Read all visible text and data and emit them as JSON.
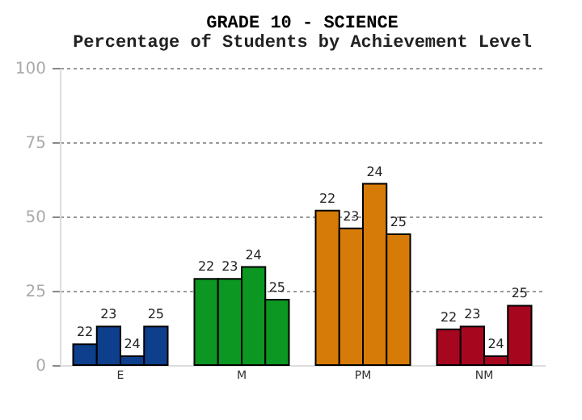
{
  "chart_data": {
    "type": "bar",
    "title": "GRADE 10 - SCIENCE",
    "subtitle": "Percentage of Students by Achievement Level",
    "categories": [
      "E",
      "M",
      "PM",
      "NM"
    ],
    "series": [
      {
        "name": "22",
        "colors": [
          "#0d3f8c",
          "#0c9622",
          "#d67b07",
          "#a6071f"
        ],
        "values": [
          7,
          29,
          52,
          12
        ]
      },
      {
        "name": "23",
        "colors": [
          "#0d3f8c",
          "#0c9622",
          "#d67b07",
          "#a6071f"
        ],
        "values": [
          13,
          29,
          46,
          13
        ]
      },
      {
        "name": "24",
        "colors": [
          "#0d3f8c",
          "#0c9622",
          "#d67b07",
          "#a6071f"
        ],
        "values": [
          3,
          33,
          61,
          3
        ]
      },
      {
        "name": "25",
        "colors": [
          "#0d3f8c",
          "#0c9622",
          "#d67b07",
          "#a6071f"
        ],
        "values": [
          13,
          22,
          44,
          20
        ]
      }
    ],
    "ylim": [
      0,
      100
    ],
    "yticks": [
      0,
      25,
      50,
      75,
      100
    ],
    "grid": "y"
  }
}
